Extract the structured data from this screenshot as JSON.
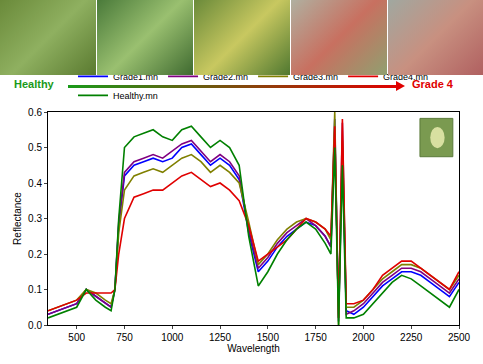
{
  "chart_data": {
    "type": "line",
    "x_label": "Wavelength",
    "y_label": "Reflectance",
    "annotations": [
      {
        "text": "Healthy",
        "color": "#1a9a1a"
      },
      {
        "text": "Grade 4",
        "color": "#e00000"
      }
    ],
    "x": [
      350,
      400,
      450,
      500,
      550,
      600,
      650,
      680,
      700,
      720,
      750,
      800,
      850,
      900,
      950,
      1000,
      1050,
      1100,
      1150,
      1200,
      1250,
      1300,
      1350,
      1400,
      1450,
      1500,
      1550,
      1600,
      1650,
      1700,
      1750,
      1800,
      1830,
      1850,
      1870,
      1890,
      1910,
      1950,
      2000,
      2050,
      2100,
      2150,
      2200,
      2250,
      2300,
      2350,
      2400,
      2450,
      2500
    ],
    "series": [
      {
        "name": "Grade1.mn",
        "color": "#0000ff",
        "values": [
          0.03,
          0.04,
          0.05,
          0.06,
          0.1,
          0.08,
          0.06,
          0.05,
          0.1,
          0.28,
          0.42,
          0.45,
          0.46,
          0.47,
          0.46,
          0.47,
          0.5,
          0.51,
          0.48,
          0.45,
          0.47,
          0.45,
          0.41,
          0.26,
          0.15,
          0.18,
          0.22,
          0.25,
          0.27,
          0.29,
          0.28,
          0.25,
          0.22,
          0.58,
          0.01,
          0.5,
          0.04,
          0.03,
          0.05,
          0.08,
          0.11,
          0.13,
          0.15,
          0.15,
          0.14,
          0.12,
          0.1,
          0.08,
          0.12
        ]
      },
      {
        "name": "Grade2.mn",
        "color": "#800080",
        "values": [
          0.03,
          0.04,
          0.05,
          0.06,
          0.1,
          0.08,
          0.06,
          0.05,
          0.1,
          0.29,
          0.43,
          0.46,
          0.47,
          0.48,
          0.47,
          0.49,
          0.51,
          0.52,
          0.49,
          0.46,
          0.48,
          0.46,
          0.42,
          0.27,
          0.16,
          0.19,
          0.23,
          0.26,
          0.28,
          0.3,
          0.28,
          0.25,
          0.22,
          0.55,
          0.02,
          0.57,
          0.03,
          0.04,
          0.06,
          0.09,
          0.12,
          0.14,
          0.16,
          0.16,
          0.15,
          0.13,
          0.11,
          0.09,
          0.13
        ]
      },
      {
        "name": "Grade3.mn",
        "color": "#808000",
        "values": [
          0.04,
          0.05,
          0.06,
          0.07,
          0.1,
          0.09,
          0.07,
          0.06,
          0.1,
          0.26,
          0.38,
          0.42,
          0.43,
          0.44,
          0.43,
          0.45,
          0.47,
          0.48,
          0.46,
          0.43,
          0.45,
          0.43,
          0.4,
          0.29,
          0.17,
          0.2,
          0.24,
          0.27,
          0.29,
          0.3,
          0.29,
          0.27,
          0.24,
          0.6,
          0.0,
          0.52,
          0.05,
          0.05,
          0.07,
          0.1,
          0.13,
          0.15,
          0.17,
          0.17,
          0.16,
          0.14,
          0.12,
          0.1,
          0.14
        ]
      },
      {
        "name": "Grade4.mn",
        "color": "#e00000",
        "values": [
          0.04,
          0.05,
          0.06,
          0.07,
          0.09,
          0.09,
          0.09,
          0.09,
          0.1,
          0.2,
          0.3,
          0.36,
          0.37,
          0.38,
          0.38,
          0.4,
          0.42,
          0.43,
          0.41,
          0.39,
          0.4,
          0.38,
          0.35,
          0.28,
          0.18,
          0.2,
          0.22,
          0.24,
          0.27,
          0.3,
          0.29,
          0.27,
          0.25,
          0.56,
          0.02,
          0.58,
          0.06,
          0.06,
          0.07,
          0.1,
          0.14,
          0.16,
          0.18,
          0.18,
          0.16,
          0.14,
          0.12,
          0.1,
          0.15
        ]
      },
      {
        "name": "Healthy.mn",
        "color": "#008000",
        "values": [
          0.02,
          0.03,
          0.04,
          0.05,
          0.1,
          0.07,
          0.05,
          0.04,
          0.1,
          0.3,
          0.5,
          0.53,
          0.54,
          0.55,
          0.53,
          0.52,
          0.55,
          0.56,
          0.53,
          0.5,
          0.52,
          0.5,
          0.45,
          0.25,
          0.11,
          0.15,
          0.2,
          0.24,
          0.27,
          0.29,
          0.27,
          0.23,
          0.2,
          0.5,
          0.0,
          0.45,
          0.02,
          0.02,
          0.03,
          0.06,
          0.09,
          0.12,
          0.14,
          0.13,
          0.11,
          0.09,
          0.07,
          0.05,
          0.1
        ]
      }
    ],
    "xlim": [
      350,
      2500
    ],
    "xticks": [
      500,
      750,
      1000,
      1250,
      1500,
      1750,
      2000,
      2250,
      2500
    ],
    "ylim": [
      0,
      0.6
    ],
    "yticks": [
      {
        "value": 0,
        "label": "0.0"
      },
      0.1,
      0.2,
      0.3,
      0.4,
      0.5,
      0.6
    ],
    "grid": false,
    "legend": "top"
  }
}
